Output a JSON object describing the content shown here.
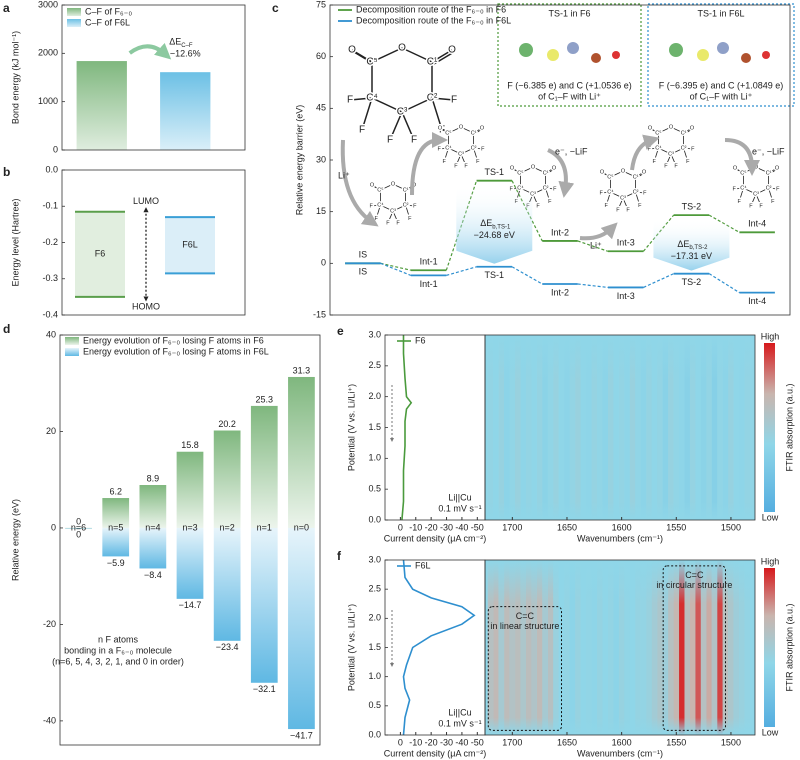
{
  "chart_data": [
    {
      "label": "a",
      "type": "bar",
      "ylabel": "Bond energy (kJ mol⁻¹)",
      "ylim": [
        0,
        3000
      ],
      "yticks": [
        0,
        1000,
        2000,
        3000
      ],
      "series": [
        {
          "name": "C–F of F₆₋₀",
          "color": "#7fb77e",
          "values": [
            1840
          ]
        },
        {
          "name": "C–F of F6L",
          "color": "#6cc0e5",
          "values": [
            1610
          ]
        }
      ],
      "annotation": {
        "symbol": "ΔE",
        "subscript": "C–F",
        "change": {
          "value": -12.6,
          "label": "−12.6%"
        }
      }
    },
    {
      "label": "b",
      "type": "level",
      "ylabel": "Energy level (Hartree)",
      "ylim": [
        -0.4,
        0
      ],
      "yticks": [
        -0.4,
        -0.3,
        -0.2,
        -0.1,
        {
          "value": 0,
          "label": "0.0"
        }
      ],
      "series": [
        {
          "name": "F6",
          "color": "#5a9e4b",
          "lumo": -0.115,
          "homo": -0.35
        },
        {
          "name": "F6L",
          "color": "#3a9fd6",
          "lumo": -0.13,
          "homo": -0.285
        }
      ],
      "lumo_label": "LUMO",
      "homo_label": "HOMO"
    },
    {
      "label": "c",
      "type": "profile",
      "ylabel": "Relative energy barrier (eV)",
      "ylim": [
        -15,
        75
      ],
      "yticks": [
        -15,
        0,
        15,
        30,
        45,
        60,
        75
      ],
      "categories": [
        "IS",
        "Int-1",
        "TS-1",
        "Int-2",
        "Int-3",
        "TS-2",
        "Int-4"
      ],
      "series": [
        {
          "name": "Decomposition route of the F₆₋₀ in F6",
          "color": "#4e9a3a",
          "values": [
            0,
            -2,
            24,
            6.5,
            3.5,
            14,
            9
          ]
        },
        {
          "name": "Decomposition route of the F₆₋₀ in F6L",
          "color": "#2e8fcf",
          "values": [
            0,
            -3.5,
            -1,
            -6,
            -7,
            -3,
            -8.5
          ]
        }
      ],
      "barriers": [
        {
          "symbol": "ΔE",
          "subscript": "b,TS-1",
          "value": -24.68,
          "label": "−24.68 eV"
        },
        {
          "symbol": "ΔE",
          "subscript": "b,TS-2",
          "value": -17.31,
          "label": "−17.31 eV"
        }
      ],
      "insets": [
        {
          "title": "TS-1 in F6",
          "lines": [
            "F (−6.385 e) and C (+1.0536 e)",
            "of C₁–F with Li⁺"
          ]
        },
        {
          "title": "TS-1 in F6L",
          "lines": [
            "F (−6.395 e) and C (+1.0849 e)",
            "of C₁–F with Li⁺"
          ]
        }
      ],
      "reactions": [
        "Li⁺",
        "e⁻, −LiF",
        "Li⁺",
        "e⁻, −LiF"
      ],
      "molecule": [
        "O",
        "C⁵",
        "O",
        "C¹",
        "O",
        "C⁴",
        "C³",
        "C²",
        "F",
        "F",
        "F",
        "F",
        "F",
        "F"
      ]
    },
    {
      "label": "d",
      "type": "diverging_bar",
      "ylabel": "Relative energy (eV)",
      "ylim": [
        -45,
        40
      ],
      "yticks": [
        -40,
        -20,
        0,
        20,
        40
      ],
      "categories": [
        "n=6",
        "n=5",
        "n=4",
        "n=3",
        "n=2",
        "n=1",
        "n=0"
      ],
      "series": [
        {
          "name": "Energy evolution of F₆₋₀ losing F atoms in F6",
          "color": "#7fb77e",
          "values": [
            0,
            6.2,
            8.9,
            15.8,
            20.2,
            25.3,
            31.3
          ]
        },
        {
          "name": "Energy evolution of F₆₋₀ losing F atoms in F6L",
          "color": "#5fb8e3",
          "values": [
            0,
            -5.9,
            -8.4,
            -14.7,
            -23.4,
            -32.1,
            -41.7
          ],
          "value_labels": [
            "0",
            "−5.9",
            "−8.4",
            "−14.7",
            "−23.4",
            "−32.1",
            "−41.7"
          ]
        }
      ],
      "note": [
        "n F atoms",
        "bonding in a F₆₋₀ molecule",
        "(n=6, 5, 4, 3, 2, 1, and 0 in order)"
      ]
    },
    {
      "label": "e",
      "type": "cv_ftir",
      "ylabel": "Potential (V vs. Li/Li⁺)",
      "ylim": [
        0,
        3
      ],
      "yticks": [
        {
          "value": 0,
          "label": "0.0"
        },
        0.5,
        {
          "value": 1,
          "label": "1.0"
        },
        1.5,
        {
          "value": 2,
          "label": "2.0"
        },
        2.5,
        {
          "value": 3,
          "label": "3.0"
        }
      ],
      "cv": {
        "name": "F6",
        "color": "#4a9a3c",
        "xlabel": "Current density (μA cm⁻²)",
        "xlim": [
          10,
          -55
        ],
        "xticks": [
          0,
          -10,
          -20,
          -30,
          -40,
          -50
        ],
        "x": [
          -1,
          -2,
          -2,
          -3,
          -3,
          -4,
          -7,
          -4,
          -3,
          -2,
          -2
        ],
        "values": [
          0,
          0.3,
          0.8,
          1.2,
          1.6,
          1.8,
          1.9,
          2.0,
          2.3,
          2.7,
          3.0
        ],
        "notes": [
          "Li||Cu",
          "0.1 mV s⁻¹"
        ]
      },
      "ftir": {
        "xlabel": "Wavenumbers (cm⁻¹)",
        "xlim": [
          1725,
          1478
        ],
        "xticks": [
          1700,
          1650,
          1600,
          1550,
          1500
        ],
        "wavenumbers": [
          1720,
          1715,
          1710,
          1705,
          1700,
          1695,
          1690,
          1685,
          1680,
          1675,
          1670,
          1665,
          1660,
          1655,
          1650,
          1645,
          1640,
          1635,
          1630,
          1625,
          1620,
          1615,
          1610,
          1605,
          1600,
          1595,
          1590,
          1585,
          1580,
          1575,
          1570,
          1565,
          1560,
          1555,
          1550,
          1545,
          1540,
          1535,
          1530,
          1525,
          1520,
          1515,
          1510,
          1505,
          1500,
          1495,
          1490,
          1485,
          1480
        ],
        "intensity": [
          0.42,
          0.4,
          0.44,
          0.38,
          0.41,
          0.45,
          0.39,
          0.42,
          0.4,
          0.43,
          0.37,
          0.41,
          0.44,
          0.4,
          0.38,
          0.42,
          0.45,
          0.4,
          0.39,
          0.43,
          0.41,
          0.38,
          0.44,
          0.4,
          0.42,
          0.39,
          0.45,
          0.41,
          0.38,
          0.43,
          0.4,
          0.42,
          0.36,
          0.44,
          0.41,
          0.39,
          0.35,
          0.43,
          0.4,
          0.37,
          0.42,
          0.34,
          0.41,
          0.38,
          0.44,
          0.4,
          0.39,
          0.42,
          0.41
        ],
        "colorbar": {
          "high": "High",
          "low": "Low",
          "label": "FTIR absorption (a.u.)"
        },
        "boxes": []
      }
    },
    {
      "label": "f",
      "type": "cv_ftir",
      "ylabel": "Potential (V vs. Li/Li⁺)",
      "ylim": [
        0,
        3
      ],
      "yticks": [
        {
          "value": 0,
          "label": "0.0"
        },
        0.5,
        {
          "value": 1,
          "label": "1.0"
        },
        1.5,
        {
          "value": 2,
          "label": "2.0"
        },
        2.5,
        {
          "value": 3,
          "label": "3.0"
        }
      ],
      "cv": {
        "name": "F6L",
        "color": "#2e8fcf",
        "xlabel": "Current density (μA cm⁻²)",
        "xlim": [
          10,
          -55
        ],
        "xticks": [
          0,
          -10,
          -20,
          -30,
          -40,
          -50
        ],
        "x": [
          -2,
          -3,
          -6,
          -3,
          -2,
          -4,
          -8,
          -20,
          -40,
          -48,
          -40,
          -20,
          -8,
          -3,
          -2
        ],
        "values": [
          0,
          0.3,
          0.6,
          0.8,
          1.0,
          1.2,
          1.5,
          1.7,
          1.9,
          2.05,
          2.2,
          2.35,
          2.5,
          2.7,
          3.0
        ],
        "notes": [
          "Li||Cu",
          "0.1 mV s⁻¹"
        ]
      },
      "ftir": {
        "xlabel": "Wavenumbers (cm⁻¹)",
        "xlim": [
          1725,
          1478
        ],
        "xticks": [
          1700,
          1650,
          1600,
          1550,
          1500
        ],
        "wavenumbers": [
          1720,
          1715,
          1710,
          1705,
          1700,
          1695,
          1690,
          1685,
          1680,
          1675,
          1670,
          1665,
          1660,
          1655,
          1650,
          1645,
          1640,
          1635,
          1630,
          1625,
          1620,
          1615,
          1610,
          1605,
          1600,
          1595,
          1590,
          1585,
          1580,
          1575,
          1570,
          1565,
          1560,
          1555,
          1550,
          1545,
          1540,
          1535,
          1530,
          1525,
          1520,
          1515,
          1510,
          1505,
          1500,
          1495,
          1490,
          1485,
          1480
        ],
        "intensity": [
          0.6,
          0.66,
          0.52,
          0.64,
          0.58,
          0.62,
          0.55,
          0.63,
          0.57,
          0.65,
          0.52,
          0.6,
          0.45,
          0.4,
          0.42,
          0.38,
          0.44,
          0.4,
          0.41,
          0.39,
          0.43,
          0.4,
          0.42,
          0.38,
          0.44,
          0.41,
          0.4,
          0.43,
          0.42,
          0.45,
          0.5,
          0.55,
          0.48,
          0.6,
          0.68,
          0.96,
          0.62,
          0.7,
          0.88,
          0.6,
          0.72,
          0.58,
          0.92,
          0.62,
          0.55,
          0.48,
          0.45,
          0.42,
          0.4
        ],
        "colorbar": {
          "high": "High",
          "low": "Low",
          "label": "FTIR absorption (a.u.)"
        },
        "boxes": [
          {
            "lines": [
              "C=C",
              "in linear structure"
            ]
          },
          {
            "lines": [
              "C=C",
              "in circular structure"
            ]
          }
        ]
      }
    }
  ]
}
